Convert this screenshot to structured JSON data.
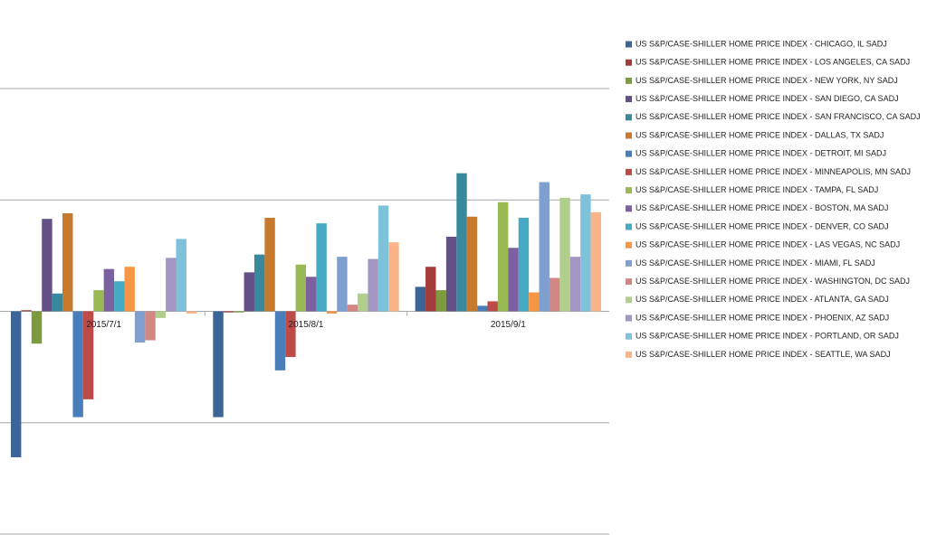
{
  "chart_data": {
    "type": "bar",
    "categories": [
      "2015/7/1",
      "2015/8/1",
      "2015/9/1"
    ],
    "series": [
      {
        "name": "US S&P/CASE-SHILLER HOME PRICE INDEX - CHICAGO, IL SADJ",
        "color": "#3c6496",
        "values": [
          -1.31,
          -0.95,
          0.22
        ]
      },
      {
        "name": "US S&P/CASE-SHILLER HOME PRICE INDEX - LOS ANGELES, CA SADJ",
        "color": "#a33b3a",
        "values": [
          0.01,
          -0.01,
          0.4
        ]
      },
      {
        "name": "US S&P/CASE-SHILLER HOME PRICE INDEX - NEW YORK, NY SADJ",
        "color": "#7e9a3f",
        "values": [
          -0.29,
          -0.01,
          0.19
        ]
      },
      {
        "name": "US S&P/CASE-SHILLER HOME PRICE INDEX - SAN DIEGO, CA SADJ",
        "color": "#644f86",
        "values": [
          0.83,
          0.35,
          0.67
        ]
      },
      {
        "name": "US S&P/CASE-SHILLER HOME PRICE INDEX - SAN FRANCISCO, CA SADJ",
        "color": "#38899b",
        "values": [
          0.16,
          0.51,
          1.24
        ]
      },
      {
        "name": "US S&P/CASE-SHILLER HOME PRICE INDEX - DALLAS, TX SADJ",
        "color": "#c7792d",
        "values": [
          0.88,
          0.84,
          0.85
        ]
      },
      {
        "name": "US S&P/CASE-SHILLER HOME PRICE INDEX - DETROIT, MI SADJ",
        "color": "#4a7ebb",
        "values": [
          -0.95,
          -0.53,
          0.05
        ]
      },
      {
        "name": "US S&P/CASE-SHILLER HOME PRICE INDEX - MINNEAPOLIS, MN SADJ",
        "color": "#be4b48",
        "values": [
          -0.79,
          -0.41,
          0.09
        ]
      },
      {
        "name": "US S&P/CASE-SHILLER HOME PRICE INDEX - TAMPA, FL SADJ",
        "color": "#98b954",
        "values": [
          0.19,
          0.42,
          0.98
        ]
      },
      {
        "name": "US S&P/CASE-SHILLER HOME PRICE INDEX - BOSTON, MA SADJ",
        "color": "#7d60a0",
        "values": [
          0.38,
          0.31,
          0.57
        ]
      },
      {
        "name": "US S&P/CASE-SHILLER HOME PRICE INDEX - DENVER, CO SADJ",
        "color": "#46aac5",
        "values": [
          0.27,
          0.79,
          0.84
        ]
      },
      {
        "name": "US S&P/CASE-SHILLER HOME PRICE INDEX - LAS VEGAS, NC SADJ",
        "color": "#f69544",
        "values": [
          0.4,
          -0.02,
          0.17
        ]
      },
      {
        "name": "US S&P/CASE-SHILLER HOME PRICE INDEX - MIAMI, FL SADJ",
        "color": "#7f9fd1",
        "values": [
          -0.28,
          0.49,
          1.16
        ]
      },
      {
        "name": "US S&P/CASE-SHILLER HOME PRICE INDEX - WASHINGTON, DC SADJ",
        "color": "#d28785",
        "values": [
          -0.26,
          0.06,
          0.3
        ]
      },
      {
        "name": "US S&P/CASE-SHILLER HOME PRICE INDEX - ATLANTA, GA SADJ",
        "color": "#b2ce8c",
        "values": [
          -0.06,
          0.16,
          1.02
        ]
      },
      {
        "name": "US S&P/CASE-SHILLER HOME PRICE INDEX - PHOENIX, AZ SADJ",
        "color": "#a496c2",
        "values": [
          0.48,
          0.47,
          0.49
        ]
      },
      {
        "name": "US S&P/CASE-SHILLER HOME PRICE INDEX - PORTLAND, OR SADJ",
        "color": "#7ec2d9",
        "values": [
          0.65,
          0.95,
          1.05
        ]
      },
      {
        "name": "US S&P/CASE-SHILLER HOME PRICE INDEX - SEATTLE, WA SADJ",
        "color": "#f9b589",
        "values": [
          -0.02,
          0.62,
          0.89
        ]
      }
    ],
    "ylim": [
      -2,
      2
    ],
    "yticks": [
      -2,
      -1,
      0,
      1,
      2
    ],
    "grid": true,
    "legend": "right"
  }
}
